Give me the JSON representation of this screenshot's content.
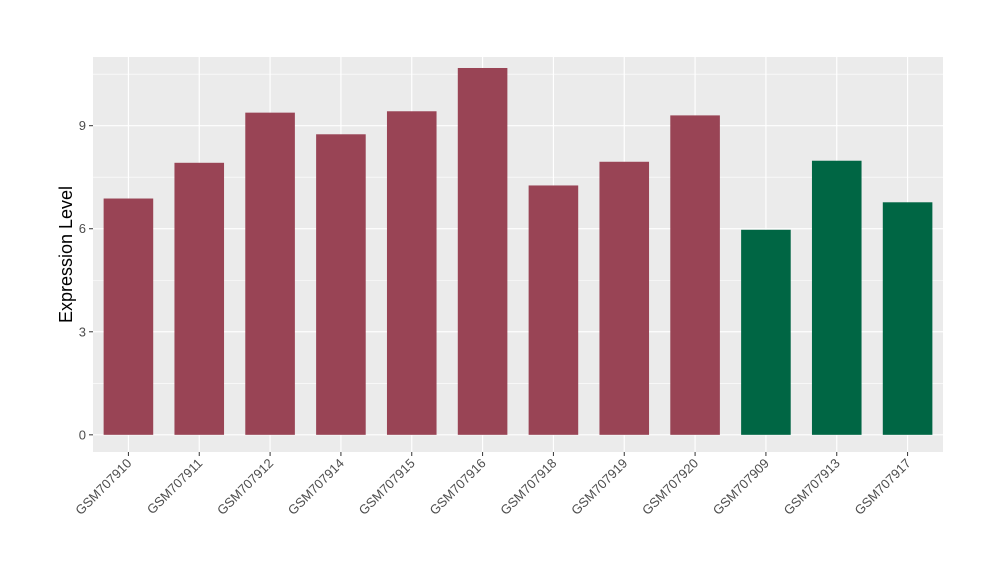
{
  "chart_data": {
    "type": "bar",
    "title": "",
    "xlabel": "",
    "ylabel": "Expression Level",
    "ylim": [
      -0.5,
      11
    ],
    "yticks": [
      0,
      3,
      6,
      9
    ],
    "yticks_labels": [
      "0",
      "3",
      "6",
      "9"
    ],
    "grid": true,
    "legend": "none",
    "categories": [
      "GSM707910",
      "GSM707911",
      "GSM707912",
      "GSM707914",
      "GSM707915",
      "GSM707916",
      "GSM707918",
      "GSM707919",
      "GSM707920",
      "GSM707909",
      "GSM707913",
      "GSM707917"
    ],
    "values": [
      6.88,
      7.92,
      9.38,
      8.75,
      9.42,
      10.68,
      7.26,
      7.95,
      9.3,
      5.97,
      7.98,
      6.77
    ],
    "bar_colors": [
      "#994455",
      "#994455",
      "#994455",
      "#994455",
      "#994455",
      "#994455",
      "#994455",
      "#994455",
      "#994455",
      "#006644",
      "#006644",
      "#006644"
    ]
  },
  "colors": {
    "panel_background": "#ebebeb",
    "grid_major": "#ffffff",
    "group_1": "#994455",
    "group_2": "#006644"
  }
}
